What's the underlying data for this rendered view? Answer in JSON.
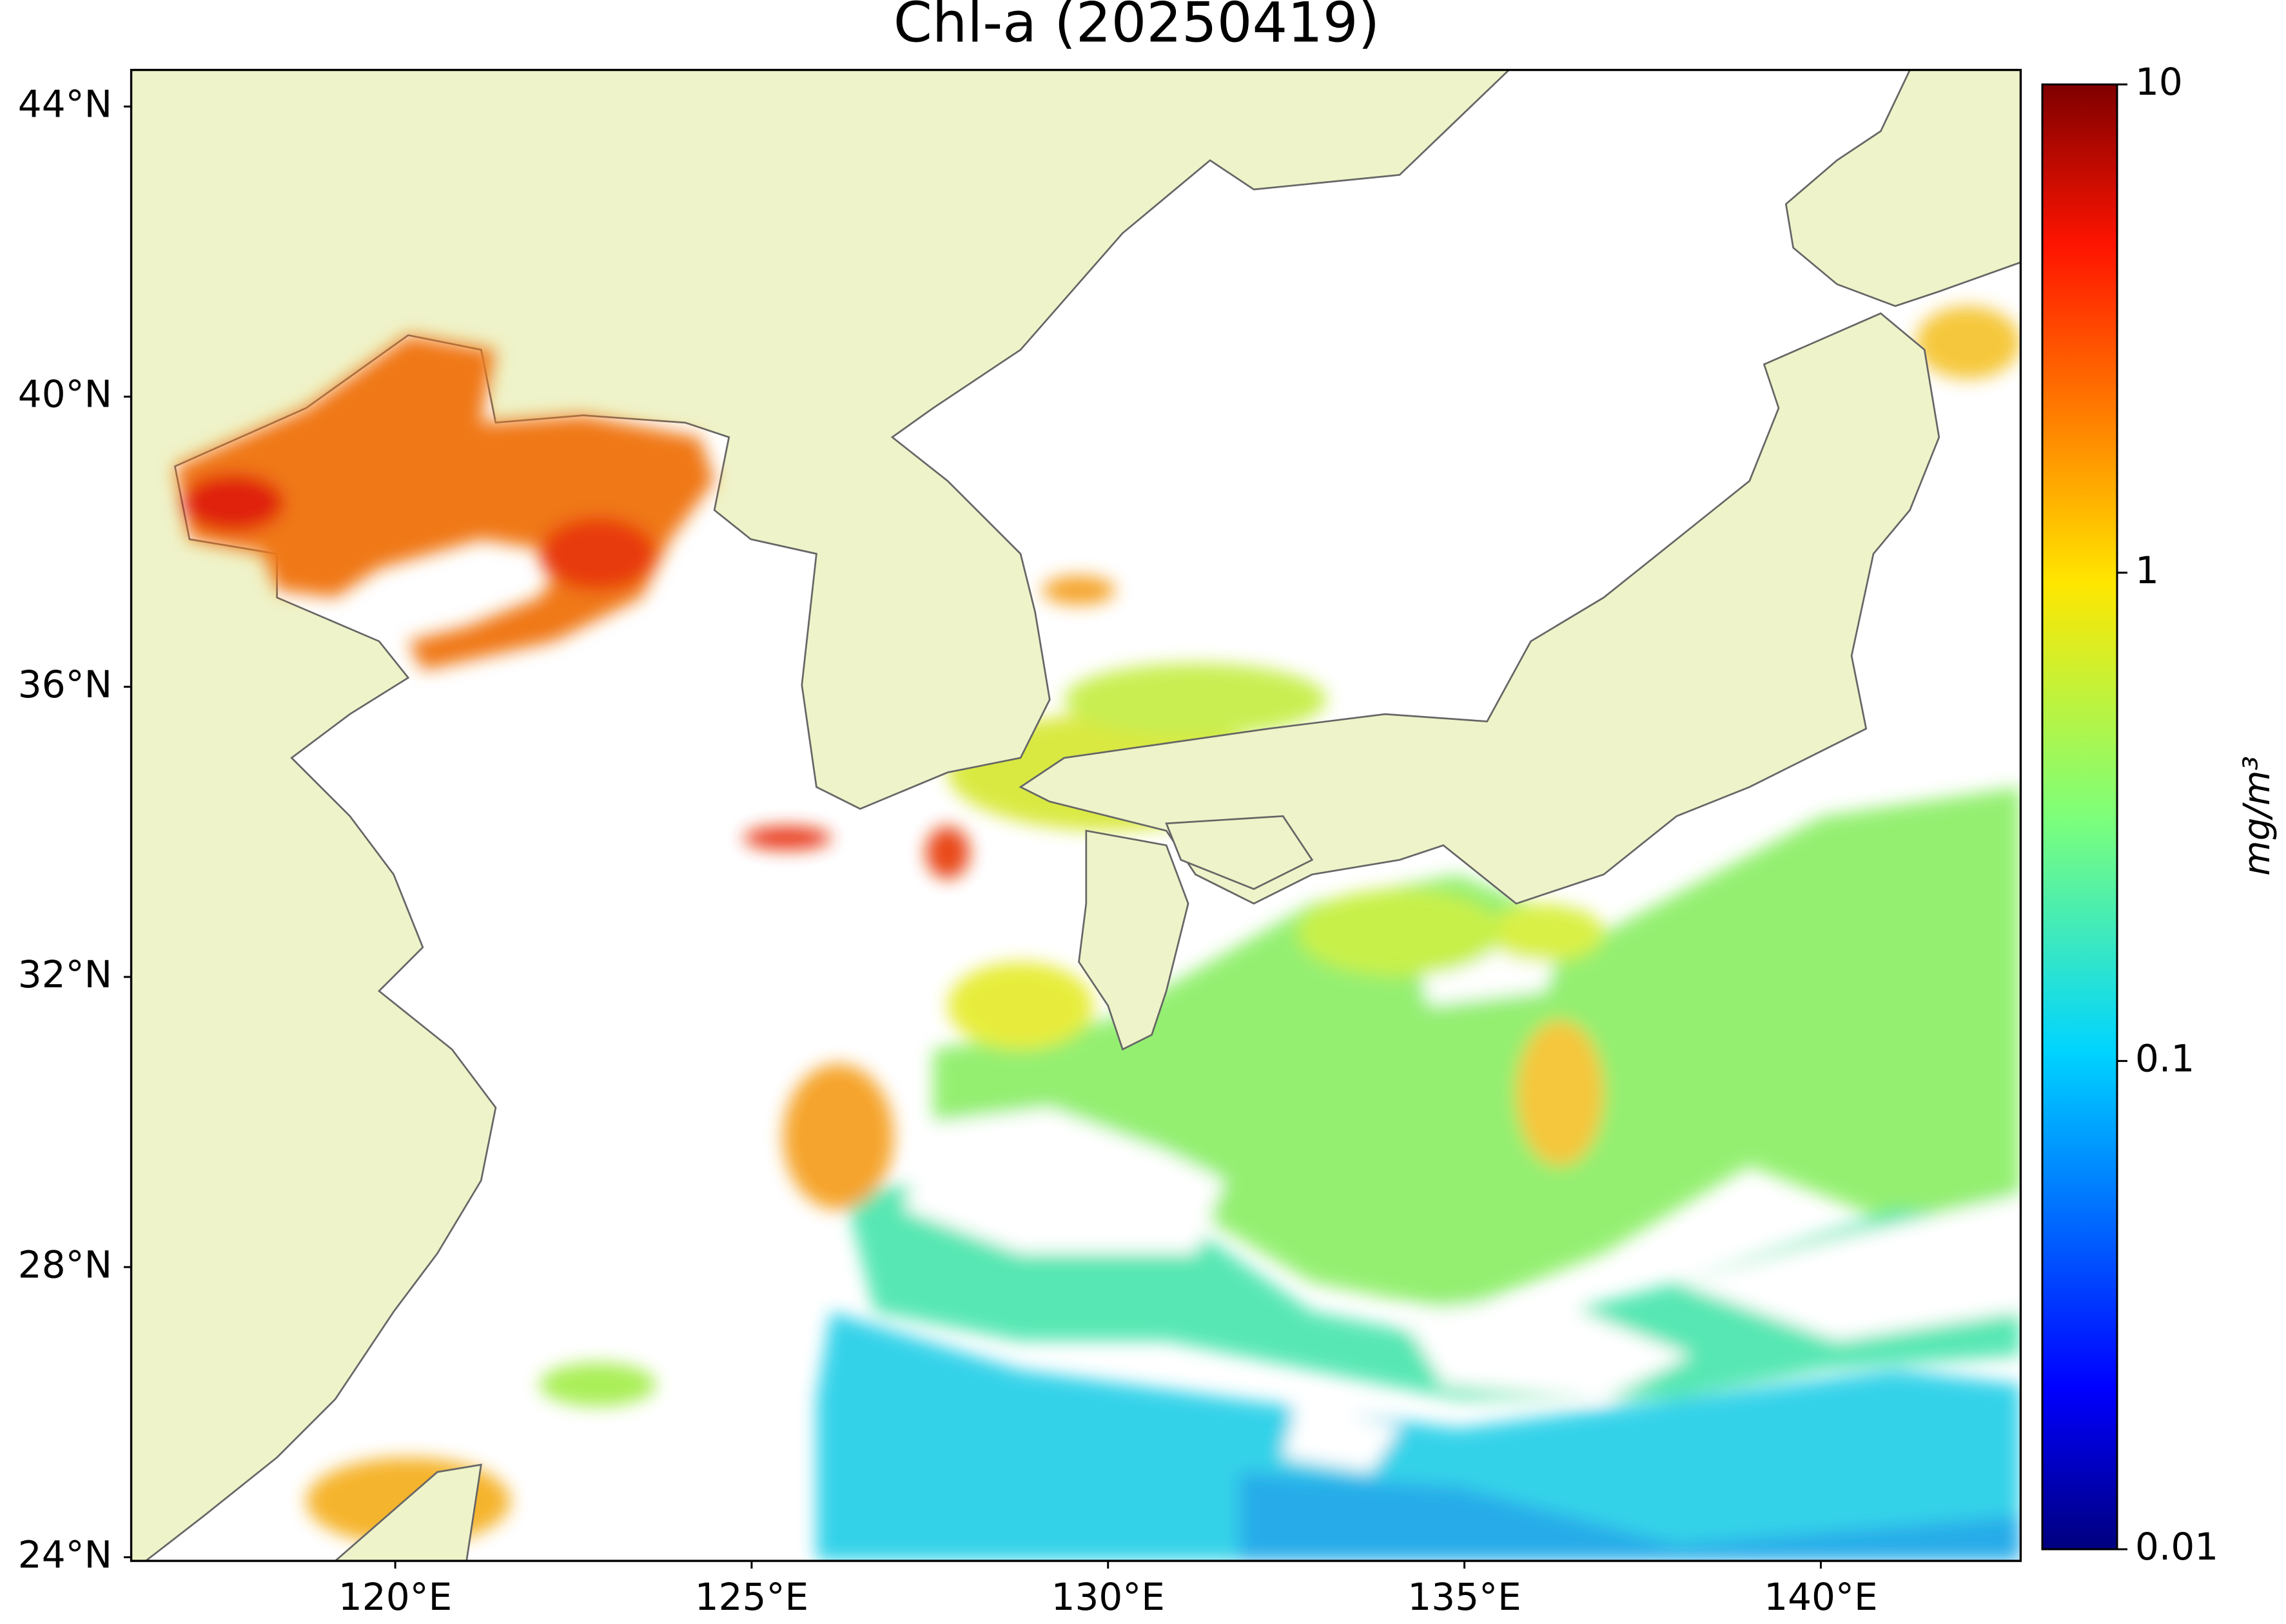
{
  "chart_data": {
    "type": "map",
    "title": "Chl-a (20250419)",
    "xlim": [
      116.3,
      142.8
    ],
    "ylim": [
      23.95,
      44.5
    ],
    "xticks": [
      {
        "value": 120,
        "label": "120°E"
      },
      {
        "value": 125,
        "label": "125°E"
      },
      {
        "value": 130,
        "label": "130°E"
      },
      {
        "value": 135,
        "label": "135°E"
      },
      {
        "value": 140,
        "label": "140°E"
      }
    ],
    "yticks": [
      {
        "value": 24,
        "label": "24°N"
      },
      {
        "value": 28,
        "label": "28°N"
      },
      {
        "value": 32,
        "label": "32°N"
      },
      {
        "value": 36,
        "label": "36°N"
      },
      {
        "value": 40,
        "label": "40°N"
      },
      {
        "value": 44,
        "label": "44°N"
      }
    ],
    "colorbar": {
      "label": "mg/m³",
      "lim": [
        0.01,
        10
      ],
      "ticks": [
        0.01,
        0.1,
        1,
        10
      ],
      "scale": "log",
      "colormap": "jet"
    }
  }
}
